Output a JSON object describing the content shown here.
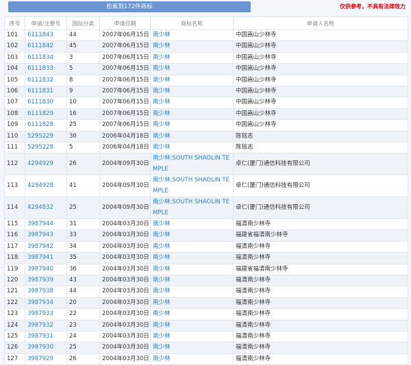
{
  "header": {
    "search_result_label": "检索到172件商标",
    "disclaimer": "仅供参考，不具有法律效力"
  },
  "colors": {
    "button": "#6b95d2",
    "link": "#2a7fc7",
    "disclaimer": "#e00000"
  },
  "table": {
    "columns": [
      "序号",
      "申请/注册号",
      "国际分类",
      "申请日期",
      "商标名称",
      "申请人名称"
    ],
    "rows": [
      [
        "101",
        "6111843",
        "44",
        "2007年06月15日",
        "南少林",
        "中国嵩山少林寺"
      ],
      [
        "102",
        "6111842",
        "45",
        "2007年06月15日",
        "南少林",
        "中国嵩山少林寺"
      ],
      [
        "103",
        "6111834",
        "3",
        "2007年06月15日",
        "南少林",
        "中国嵩山少林寺"
      ],
      [
        "104",
        "6111833",
        "5",
        "2007年06月15日",
        "南少林",
        "中国嵩山少林寺"
      ],
      [
        "105",
        "6111832",
        "8",
        "2007年06月15日",
        "南少林",
        "中国嵩山少林寺"
      ],
      [
        "106",
        "6111831",
        "9",
        "2007年06月15日",
        "南少林",
        "中国嵩山少林寺"
      ],
      [
        "107",
        "6111830",
        "10",
        "2007年06月15日",
        "南少林",
        "中国嵩山少林寺"
      ],
      [
        "108",
        "6111829",
        "16",
        "2007年06月15日",
        "南少林",
        "中国嵩山少林寺"
      ],
      [
        "109",
        "6111828",
        "25",
        "2007年06月15日",
        "南少林",
        "中国嵩山少林寺"
      ],
      [
        "110",
        "5295229",
        "30",
        "2006年04月18日",
        "南少林",
        "陈铭志"
      ],
      [
        "111",
        "5295228",
        "5",
        "2006年04月18日",
        "南少林",
        "陈铭志"
      ],
      [
        "112",
        "4294929",
        "26",
        "2004年09月30日",
        "南少林;SOUTH SHAOLIN TEMPLE",
        "卓仁(厦门)通信科技有限公司"
      ],
      [
        "113",
        "4294928",
        "41",
        "2004年09月30日",
        "南少林;SOUTH SHAOLIN TEMPLE",
        "卓仁(厦门)通信科技有限公司"
      ],
      [
        "114",
        "4294832",
        "25",
        "2004年09月30日",
        "南少林;SOUTH SHAOLIN TEMPLE",
        "卓仁(厦门)通信科技有限公司"
      ],
      [
        "115",
        "3987944",
        "31",
        "2004年03月30日",
        "南少林",
        "福清南少林寺"
      ],
      [
        "116",
        "3987943",
        "33",
        "2004年03月30日",
        "南少林",
        "福建省福清南少林寺"
      ],
      [
        "117",
        "3987942",
        "34",
        "2004年03月30日",
        "南少林",
        "福清南少林寺"
      ],
      [
        "118",
        "3987941",
        "35",
        "2004年03月30日",
        "南少林",
        "福清南少林寺"
      ],
      [
        "119",
        "3987940",
        "36",
        "2004年03月30日",
        "南少林",
        "福建省福清南少林寺"
      ],
      [
        "120",
        "3987939",
        "43",
        "2004年03月30日",
        "南少林",
        "福清南少林寺"
      ],
      [
        "121",
        "3987938",
        "44",
        "2004年03月30日",
        "南少林",
        "福清南少林寺"
      ],
      [
        "122",
        "3987934",
        "20",
        "2004年03月30日",
        "南少林",
        "福清南少林寺"
      ],
      [
        "123",
        "3987933",
        "22",
        "2004年03月30日",
        "南少林",
        "福清南少林寺"
      ],
      [
        "124",
        "3987932",
        "23",
        "2004年03月30日",
        "南少林",
        "福清南少林寺"
      ],
      [
        "125",
        "3987931",
        "24",
        "2004年03月30日",
        "南少林",
        "福清南少林寺"
      ],
      [
        "126",
        "3987930",
        "25",
        "2004年03月30日",
        "南少林",
        "福清南少林寺"
      ],
      [
        "127",
        "3987929",
        "26",
        "2004年03月30日",
        "南少林",
        "福清南少林寺"
      ]
    ]
  }
}
